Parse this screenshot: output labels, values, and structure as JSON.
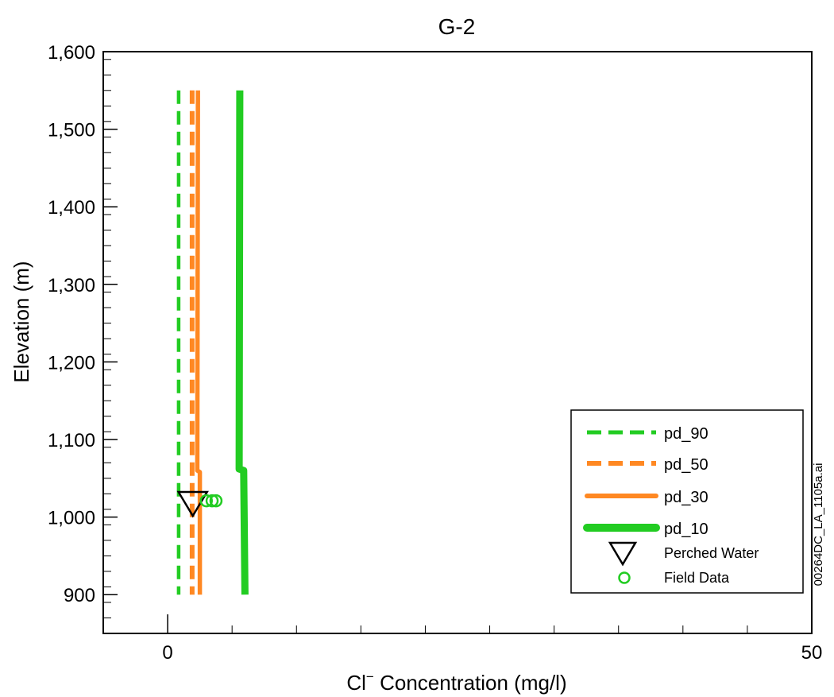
{
  "chart_data": {
    "type": "line",
    "title": "G-2",
    "xlabel_prefix": "Cl",
    "xlabel_superscript": "−",
    "xlabel_suffix": " Concentration (mg/l)",
    "ylabel": "Elevation (m)",
    "xlim": [
      -5,
      50
    ],
    "ylim": [
      850,
      1600
    ],
    "x_tick_labels": [
      {
        "value": 0,
        "label": "0"
      },
      {
        "value": 50,
        "label": "50"
      }
    ],
    "x_minor_ticks": [
      5,
      10,
      15,
      20,
      25,
      30,
      35,
      40,
      45
    ],
    "y_ticks": [
      {
        "value": 900,
        "label": "900"
      },
      {
        "value": 1000,
        "label": "1,000"
      },
      {
        "value": 1100,
        "label": "1,100"
      },
      {
        "value": 1200,
        "label": "1,200"
      },
      {
        "value": 1300,
        "label": "1,300"
      },
      {
        "value": 1400,
        "label": "1,400"
      },
      {
        "value": 1500,
        "label": "1,500"
      },
      {
        "value": 1600,
        "label": "1,600"
      }
    ],
    "y_minor_step": 20,
    "series": [
      {
        "name": "pd_90",
        "color": "#22cc22",
        "dash": true,
        "points": [
          [
            0.85,
            1550
          ],
          [
            0.85,
            1060
          ],
          [
            0.85,
            900
          ]
        ]
      },
      {
        "name": "pd_50",
        "color": "#ff8822",
        "dash": true,
        "points": [
          [
            1.9,
            1550
          ],
          [
            1.9,
            1060
          ],
          [
            1.9,
            900
          ]
        ]
      },
      {
        "name": "pd_30",
        "color": "#ff8822",
        "dash": false,
        "points": [
          [
            2.35,
            1550
          ],
          [
            2.3,
            1060
          ],
          [
            2.5,
            1058
          ],
          [
            2.5,
            900
          ]
        ]
      },
      {
        "name": "pd_10",
        "color": "#22cc22",
        "dash": false,
        "points": [
          [
            5.6,
            1550
          ],
          [
            5.55,
            1062
          ],
          [
            5.9,
            1060
          ],
          [
            6.0,
            900
          ]
        ]
      }
    ],
    "perched_water": {
      "name": "Perched Water",
      "x": 1.95,
      "y": 1018
    },
    "field_data": {
      "name": "Field Data",
      "color": "#22cc22",
      "points": [
        [
          3.0,
          1021
        ],
        [
          3.45,
          1021
        ],
        [
          3.75,
          1021
        ]
      ]
    },
    "legend_position": "bottom-right",
    "grid": false
  },
  "watermark": "00264DC_LA_1105a.ai"
}
